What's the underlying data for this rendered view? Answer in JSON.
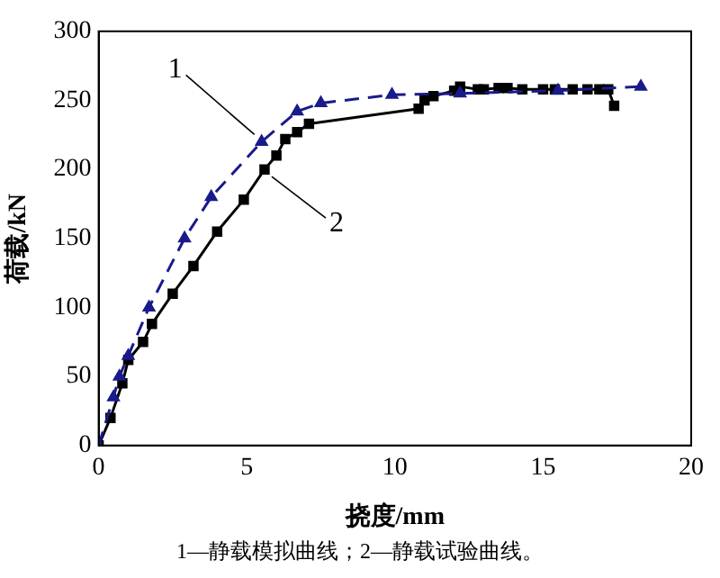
{
  "chart_data": {
    "type": "line",
    "xlabel": "挠度/mm",
    "ylabel": "荷载/kN",
    "xlim": [
      0,
      20
    ],
    "xticks": [
      0,
      5,
      10,
      15,
      20
    ],
    "ylim": [
      0,
      300
    ],
    "yticks": [
      0,
      50,
      100,
      150,
      200,
      250,
      300
    ],
    "grid": false,
    "legend": false,
    "annotations": [
      "1—静载模拟曲线；2—静载试验曲线。"
    ],
    "series": [
      {
        "name": "1",
        "color": "#1a1a8c",
        "marker": "triangle",
        "line_style": "dashed",
        "x": [
          0,
          0.5,
          0.7,
          1.0,
          1.7,
          2.9,
          3.8,
          5.5,
          6.7,
          7.5,
          9.9,
          12.2,
          15.5,
          18.3
        ],
        "values": [
          0,
          35,
          50,
          65,
          100,
          150,
          180,
          220,
          242,
          248,
          254,
          255,
          257,
          260
        ]
      },
      {
        "name": "2",
        "color": "#000000",
        "marker": "square",
        "line_style": "solid",
        "x": [
          0,
          0.4,
          0.8,
          1.0,
          1.5,
          1.8,
          2.5,
          3.2,
          4.0,
          4.9,
          5.6,
          6.0,
          6.3,
          6.7,
          7.1,
          10.8,
          11.0,
          11.3,
          12.0,
          12.2,
          12.8,
          13.0,
          13.5,
          13.8,
          14.3,
          15.0,
          15.4,
          16.0,
          16.5,
          16.9,
          17.2,
          17.4
        ],
        "values": [
          0,
          20,
          45,
          62,
          75,
          88,
          110,
          130,
          155,
          178,
          200,
          210,
          222,
          227,
          233,
          244,
          250,
          253,
          257,
          260,
          258,
          258,
          259,
          259,
          258,
          258,
          258,
          258,
          258,
          258,
          258,
          246
        ]
      }
    ]
  }
}
